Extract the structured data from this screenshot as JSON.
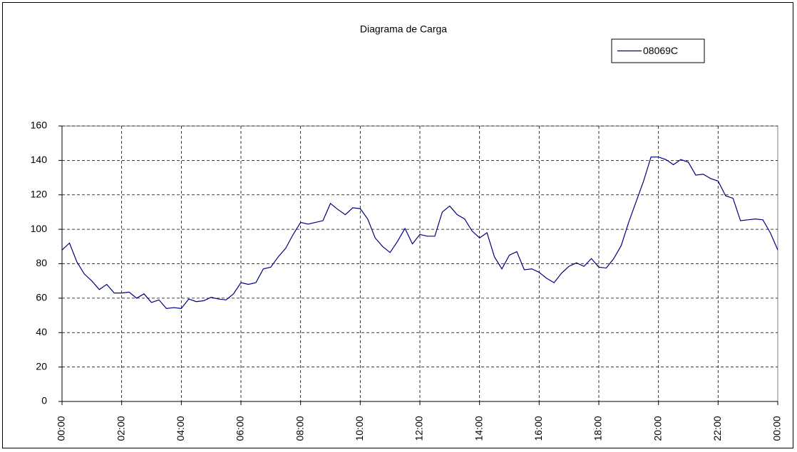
{
  "chart_data": {
    "type": "line",
    "title": "Diagrama de Carga",
    "categories": [
      "00:00",
      null,
      null,
      null,
      null,
      null,
      null,
      null,
      "02:00",
      null,
      null,
      null,
      null,
      null,
      null,
      null,
      "04:00",
      null,
      null,
      null,
      null,
      null,
      null,
      null,
      "06:00",
      null,
      null,
      null,
      null,
      null,
      null,
      null,
      "08:00",
      null,
      null,
      null,
      null,
      null,
      null,
      null,
      "10:00",
      null,
      null,
      null,
      null,
      null,
      null,
      null,
      "12:00",
      null,
      null,
      null,
      null,
      null,
      null,
      null,
      "14:00",
      null,
      null,
      null,
      null,
      null,
      null,
      null,
      "16:00",
      null,
      null,
      null,
      null,
      null,
      null,
      null,
      "18:00",
      null,
      null,
      null,
      null,
      null,
      null,
      null,
      "20:00",
      null,
      null,
      null,
      null,
      null,
      null,
      null,
      "22:00",
      null,
      null,
      null,
      null,
      null,
      null,
      null,
      "00:00"
    ],
    "series": [
      {
        "name": "08069C",
        "color": "#000080",
        "values": [
          88,
          92,
          81,
          74,
          70,
          65,
          68,
          63,
          63,
          63.5,
          60,
          62.5,
          57.5,
          59,
          54,
          54.5,
          54,
          59.5,
          58,
          58.5,
          60.5,
          59.5,
          59,
          62.5,
          69,
          68,
          69,
          77,
          78,
          84,
          89,
          97,
          104,
          103,
          104,
          105,
          115,
          111.5,
          108.5,
          112.5,
          112,
          106,
          95,
          90,
          86.5,
          93,
          100.5,
          91.5,
          97,
          96,
          96,
          110,
          113.5,
          108.5,
          106,
          99,
          95,
          98,
          84,
          77,
          85,
          87,
          76.5,
          77,
          75,
          71.5,
          69,
          74.5,
          78.5,
          80.5,
          78.5,
          83,
          78,
          77.5,
          83,
          90.5,
          104,
          116,
          128,
          142,
          142,
          140.5,
          137.5,
          140.5,
          139,
          131.5,
          132,
          129.5,
          128,
          119.5,
          118,
          105,
          105.5,
          106,
          105.5,
          98,
          88
        ]
      }
    ],
    "ylim": [
      0,
      160
    ],
    "yticks": [
      0,
      20,
      40,
      60,
      80,
      100,
      120,
      140,
      160
    ],
    "grid": true,
    "legend": "top-right"
  }
}
